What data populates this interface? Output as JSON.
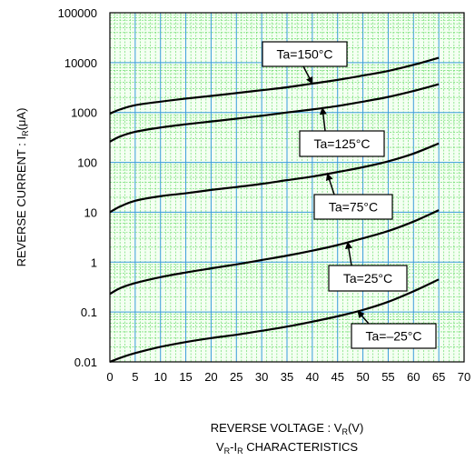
{
  "chart_data": {
    "type": "line",
    "title": "",
    "subtitle": "V",
    "subtitle_sub1": "R",
    "subtitle_mid": "-I",
    "subtitle_sub2": "R",
    "subtitle_tail": " CHARACTERISTICS",
    "xlabel_main": "REVERSE VOLTAGE : V",
    "xlabel_sub": "R",
    "xlabel_tail": "(V)",
    "ylabel_main": "REVERSE CURRENT : I",
    "ylabel_sub": "R",
    "ylabel_tail": "(μA)",
    "xlim": [
      0,
      70
    ],
    "ylim": [
      0.01,
      100000
    ],
    "yscale": "log",
    "grid": true,
    "grid_color": "#58d858",
    "major_grid_color": "#3a9cdc",
    "xticks": [
      "0",
      "5",
      "10",
      "15",
      "20",
      "25",
      "30",
      "35",
      "40",
      "45",
      "50",
      "55",
      "60",
      "65",
      "70"
    ],
    "yticks": [
      "0.01",
      "0.1",
      "1",
      "10",
      "100",
      "1000",
      "10000",
      "100000"
    ],
    "series": [
      {
        "name": "Ta=150°C",
        "x": [
          0,
          2,
          5,
          10,
          15,
          20,
          25,
          30,
          35,
          40,
          45,
          50,
          55,
          60,
          65
        ],
        "y": [
          950,
          1150,
          1400,
          1650,
          1900,
          2150,
          2450,
          2800,
          3200,
          3800,
          4500,
          5500,
          6800,
          9000,
          12500
        ]
      },
      {
        "name": "Ta=125°C",
        "x": [
          0,
          2,
          5,
          10,
          15,
          20,
          25,
          30,
          35,
          40,
          45,
          50,
          55,
          60,
          65
        ],
        "y": [
          260,
          330,
          410,
          500,
          580,
          660,
          750,
          860,
          1000,
          1150,
          1350,
          1650,
          2050,
          2700,
          3700
        ]
      },
      {
        "name": "Ta=75°C",
        "x": [
          0,
          2,
          5,
          10,
          15,
          20,
          25,
          30,
          35,
          40,
          45,
          50,
          55,
          60,
          65
        ],
        "y": [
          10,
          13,
          17,
          21,
          24,
          28,
          32,
          37,
          44,
          52,
          64,
          80,
          105,
          150,
          240
        ]
      },
      {
        "name": "Ta=25°C",
        "x": [
          0,
          2,
          5,
          10,
          15,
          20,
          25,
          30,
          35,
          40,
          45,
          50,
          55,
          60,
          65
        ],
        "y": [
          0.23,
          0.3,
          0.38,
          0.5,
          0.62,
          0.75,
          0.9,
          1.1,
          1.35,
          1.7,
          2.2,
          3.0,
          4.2,
          6.5,
          11
        ]
      },
      {
        "name": "Ta=-25°C",
        "x": [
          0,
          2,
          5,
          10,
          15,
          20,
          25,
          30,
          35,
          40,
          45,
          50,
          55,
          60,
          65
        ],
        "y": [
          0.01,
          0.012,
          0.015,
          0.02,
          0.025,
          0.03,
          0.035,
          0.042,
          0.051,
          0.064,
          0.082,
          0.11,
          0.16,
          0.26,
          0.45
        ]
      }
    ],
    "annotations": [
      {
        "text": "Ta=150°C",
        "target_series": 0,
        "target_x": 40
      },
      {
        "text": "Ta=125°C",
        "target_series": 1,
        "target_x": 42
      },
      {
        "text": "Ta=75°C",
        "target_series": 2,
        "target_x": 43
      },
      {
        "text": "Ta=25°C",
        "target_series": 3,
        "target_x": 47
      },
      {
        "text": "Ta=–25°C",
        "target_series": 4,
        "target_x": 49
      }
    ]
  }
}
